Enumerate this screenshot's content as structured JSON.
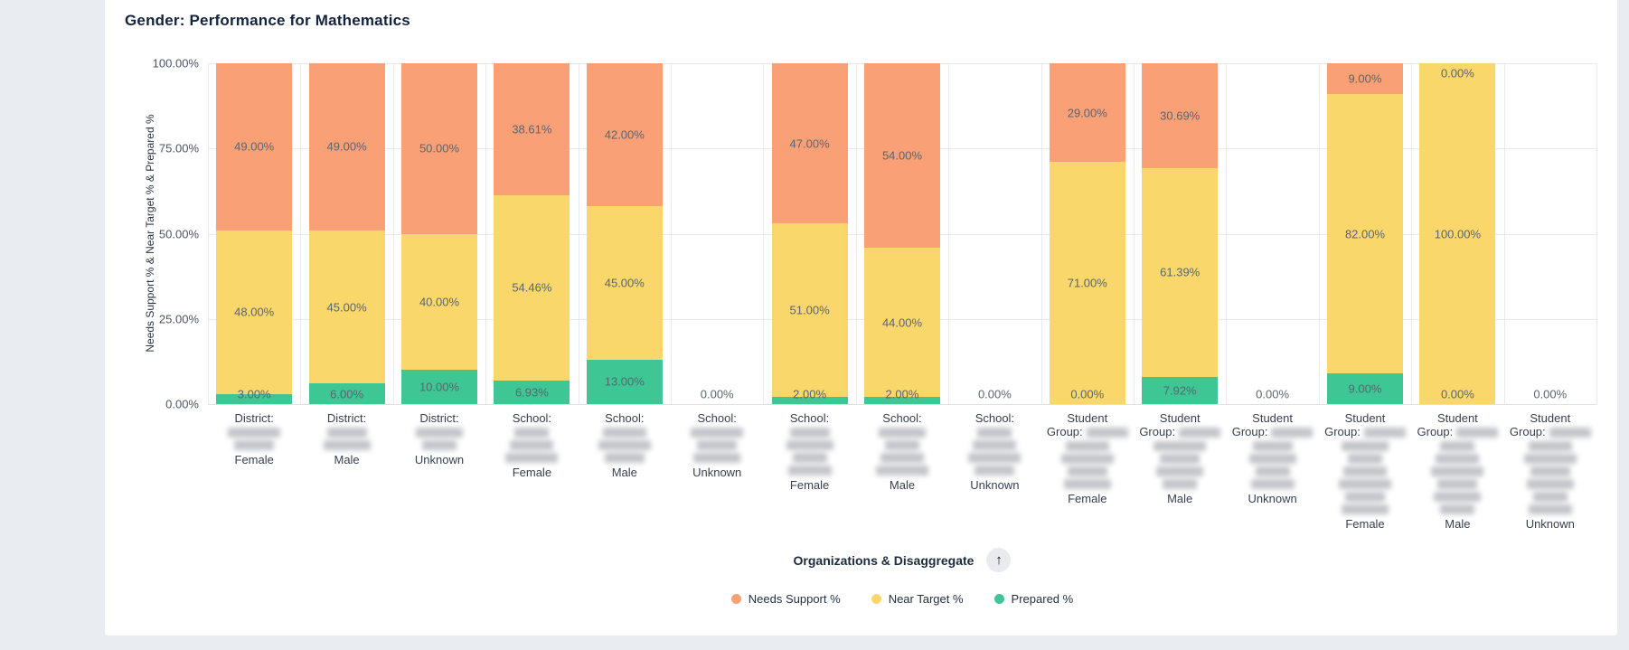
{
  "header": {
    "title": "Gender: Performance for Mathematics"
  },
  "footer": {
    "axis_caption": "Organizations & Disaggregate",
    "scroll_button_icon": "up-arrow"
  },
  "legend": [
    {
      "label": "Needs Support %",
      "color": "#FAA076"
    },
    {
      "label": "Near Target %",
      "color": "#F9D76B"
    },
    {
      "label": "Prepared %",
      "color": "#3EC694"
    }
  ],
  "colors": {
    "needs_support": "#FAA076",
    "near_target": "#F9D76B",
    "prepared": "#3EC694",
    "page_background": "#E9EDF1",
    "card_background": "#FFFFFF",
    "gridline": "#E9E9E9"
  },
  "chart_data": {
    "type": "bar",
    "stacked": true,
    "title": "Gender: Performance for Mathematics",
    "xlabel": "Organizations & Disaggregate",
    "ylabel": "Needs Support % & Near Target % & Prepared %",
    "ylim": [
      0,
      100
    ],
    "y_ticks": [
      "100.00%",
      "75.00%",
      "50.00%",
      "25.00%",
      "0.00%"
    ],
    "grid": true,
    "legend_position": "bottom",
    "value_label_format": "0.00%",
    "empty_bar_label": "0.00%",
    "series": [
      {
        "name": "Needs Support %",
        "color": "#FAA076",
        "values": [
          49,
          49,
          50,
          38.61,
          42,
          null,
          47,
          54,
          null,
          29,
          30.69,
          null,
          9,
          0,
          null
        ]
      },
      {
        "name": "Near Target %",
        "color": "#F9D76B",
        "values": [
          48,
          45,
          40,
          54.46,
          45,
          null,
          51,
          44,
          null,
          71,
          61.39,
          null,
          82,
          100,
          null
        ]
      },
      {
        "name": "Prepared %",
        "color": "#3EC694",
        "values": [
          3,
          6,
          10,
          6.93,
          13,
          null,
          2,
          2,
          null,
          0,
          7.92,
          null,
          9,
          0,
          null
        ]
      }
    ],
    "categories": [
      {
        "prefix": "District:",
        "redacted_name": true,
        "redacted_lines": 2,
        "gender": "Female"
      },
      {
        "prefix": "District:",
        "redacted_name": true,
        "redacted_lines": 2,
        "gender": "Male"
      },
      {
        "prefix": "District:",
        "redacted_name": true,
        "redacted_lines": 2,
        "gender": "Unknown"
      },
      {
        "prefix": "School:",
        "redacted_name": true,
        "redacted_lines": 3,
        "gender": "Female"
      },
      {
        "prefix": "School:",
        "redacted_name": true,
        "redacted_lines": 3,
        "gender": "Male"
      },
      {
        "prefix": "School:",
        "redacted_name": true,
        "redacted_lines": 3,
        "gender": "Unknown"
      },
      {
        "prefix": "School:",
        "redacted_name": true,
        "redacted_lines": 4,
        "gender": "Female"
      },
      {
        "prefix": "School:",
        "redacted_name": true,
        "redacted_lines": 4,
        "gender": "Male"
      },
      {
        "prefix": "School:",
        "redacted_name": true,
        "redacted_lines": 4,
        "gender": "Unknown"
      },
      {
        "prefix": "Student Group:",
        "redacted_name": true,
        "redacted_lines": 4,
        "gender": "Female"
      },
      {
        "prefix": "Student Group:",
        "redacted_name": true,
        "redacted_lines": 4,
        "gender": "Male"
      },
      {
        "prefix": "Student Group:",
        "redacted_name": true,
        "redacted_lines": 4,
        "gender": "Unknown"
      },
      {
        "prefix": "Student Group:",
        "redacted_name": true,
        "redacted_lines": 6,
        "gender": "Female"
      },
      {
        "prefix": "Student Group:",
        "redacted_name": true,
        "redacted_lines": 6,
        "gender": "Male"
      },
      {
        "prefix": "Student Group:",
        "redacted_name": true,
        "redacted_lines": 6,
        "gender": "Unknown"
      }
    ]
  }
}
